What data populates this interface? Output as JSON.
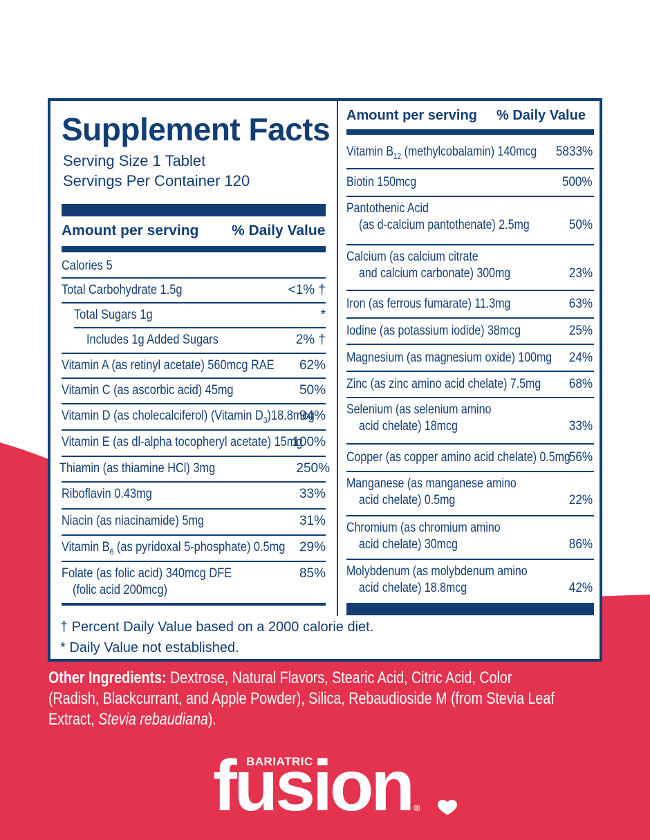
{
  "colors": {
    "navy": "#123e74",
    "brand_red": "#e3334e",
    "white": "#ffffff"
  },
  "facts": {
    "title": "Supplement Facts",
    "serving_size": "Serving Size 1 Tablet",
    "servings_per_container": "Servings Per Container 120",
    "amount_header": "Amount per serving",
    "dv_header": "% Daily Value"
  },
  "left_rows": [
    {
      "label": "Calories 5",
      "pct": ""
    },
    {
      "label": "Total Carbohydrate 1.5g",
      "pct": "<1% †"
    },
    {
      "label": "Total Sugars 1g",
      "pct": "*"
    },
    {
      "label": "Includes 1g Added Sugars",
      "pct": "2% †"
    },
    {
      "label": "Vitamin A (as retinyl acetate) 560mcg RAE",
      "pct": "62%"
    },
    {
      "label": "Vitamin C (as ascorbic acid) 45mg",
      "pct": "50%"
    },
    {
      "label": "Vitamin D (as cholecalciferol) (Vitamin D",
      "sub": "3",
      "label_after": ")18.8mcg",
      "pct": "94%"
    },
    {
      "label": "Vitamin E (as dl-alpha tocopheryl acetate) 15mg",
      "pct": "100%"
    },
    {
      "label": "Thiamin (as thiamine HCl) 3mg",
      "pct": "250%"
    },
    {
      "label": "Riboflavin 0.43mg",
      "pct": "33%"
    },
    {
      "label": "Niacin (as niacinamide) 5mg",
      "pct": "31%"
    },
    {
      "label": "Vitamin B",
      "sub": "6",
      "label_after": " (as pyridoxal 5-phosphate) 0.5mg",
      "pct": "29%"
    },
    {
      "label": "Folate (as folic acid) 340mcg DFE",
      "label2": "(folic acid 200mcg)",
      "pct": "85%"
    }
  ],
  "right_header": {
    "amount": "Amount per serving",
    "dv": "% Daily Value"
  },
  "right_rows": [
    {
      "label": "Vitamin B",
      "sub": "12",
      "label_after": " (methylcobalamin) 140mcg",
      "pct": "5833%"
    },
    {
      "label": "Biotin 150mcg",
      "pct": "500%"
    },
    {
      "label": "Pantothenic Acid",
      "label2": "(as d-calcium pantothenate) 2.5mg",
      "pct": "50%"
    },
    {
      "label": "Calcium (as calcium citrate",
      "label2": "and calcium carbonate) 300mg",
      "pct": "23%"
    },
    {
      "label": "Iron (as ferrous fumarate) 11.3mg",
      "pct": "63%"
    },
    {
      "label": "Iodine (as potassium iodide) 38mcg",
      "pct": "25%"
    },
    {
      "label": "Magnesium (as magnesium oxide) 100mg",
      "pct": "24%"
    },
    {
      "label": "Zinc (as zinc amino acid chelate) 7.5mg",
      "pct": "68%"
    },
    {
      "label": "Selenium (as selenium amino",
      "label2": "acid chelate) 18mcg",
      "pct": "33%"
    },
    {
      "label": "Copper (as copper amino acid chelate) 0.5mg",
      "pct": "56%"
    },
    {
      "label": "Manganese (as manganese amino",
      "label2": "acid chelate) 0.5mg",
      "pct": "22%"
    },
    {
      "label": "Chromium (as chromium amino",
      "label2": "acid chelate) 30mcg",
      "pct": "86%"
    },
    {
      "label": "Molybdenum (as molybdenum amino",
      "label2": "acid chelate) 18.8mcg",
      "pct": "42%"
    }
  ],
  "footnotes": {
    "dagger": "† Percent Daily Value based on a 2000 calorie diet.",
    "asterisk": "* Daily Value not established."
  },
  "ingredients": {
    "heading": "Other Ingredients:",
    "line1": " Dextrose, Natural Flavors, Stearic Acid, Citric Acid, Color",
    "line2": "(Radish, Blackcurrant, and Apple Powder), Silica, Rebaudioside M (from Stevia Leaf",
    "line3_start": "Extract, ",
    "line3_italic": "Stevia rebaudiana",
    "line3_end": ")."
  },
  "brand": {
    "top": "BARIATRIC",
    "name": "fusion",
    "registered": "®"
  }
}
